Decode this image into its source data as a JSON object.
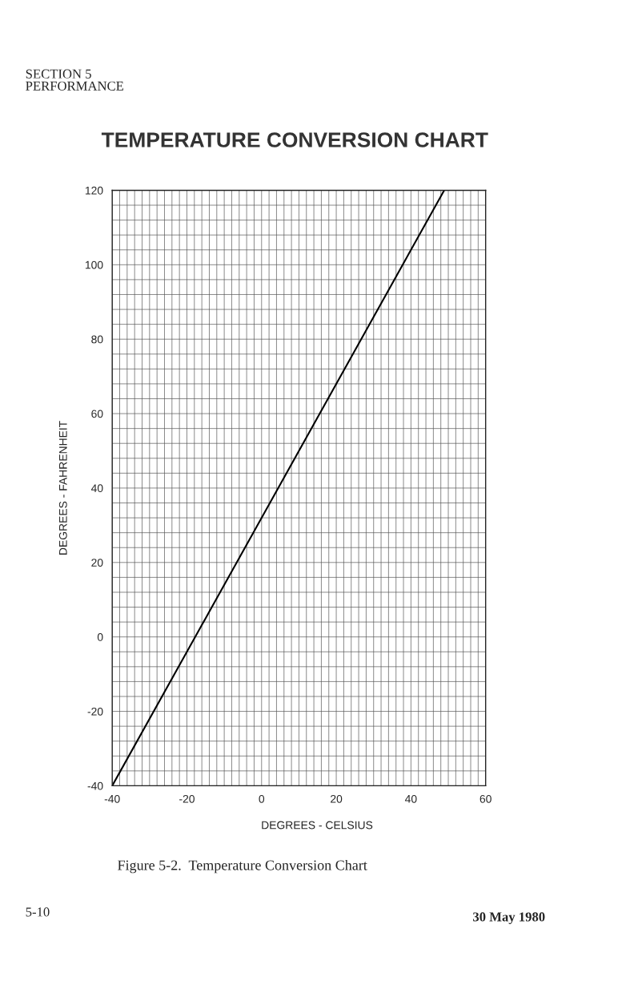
{
  "chart_data": {
    "type": "line",
    "title": "TEMPERATURE CONVERSION CHART",
    "xlabel": "DEGREES - CELSIUS",
    "ylabel": "DEGREES - FAHRENHEIT",
    "annotations": [
      "SECTION 5\nPERFORMANCE",
      "Figure 5-2.  Temperature Conversion Chart",
      "5-10",
      "30 May 1980"
    ],
    "x": [
      -40,
      48.9
    ],
    "series": [
      {
        "color": "#000000",
        "values": [
          -40,
          120
        ]
      }
    ],
    "xlim": [
      -40,
      60
    ],
    "ylim": [
      -40,
      120
    ],
    "xticks": [
      -40,
      {
        "value": -38,
        "label": null
      },
      {
        "value": -36,
        "label": null
      },
      {
        "value": -34,
        "label": null
      },
      {
        "value": -32,
        "label": null
      },
      {
        "value": -30,
        "label": null
      },
      {
        "value": -28,
        "label": null
      },
      {
        "value": -26,
        "label": null
      },
      {
        "value": -24,
        "label": null
      },
      {
        "value": -22,
        "label": null
      },
      -20,
      {
        "value": -18,
        "label": null
      },
      {
        "value": -16,
        "label": null
      },
      {
        "value": -14,
        "label": null
      },
      {
        "value": -12,
        "label": null
      },
      {
        "value": -10,
        "label": null
      },
      {
        "value": -8,
        "label": null
      },
      {
        "value": -6,
        "label": null
      },
      {
        "value": -4,
        "label": null
      },
      {
        "value": -2,
        "label": null
      },
      0,
      {
        "value": 2,
        "label": null
      },
      {
        "value": 4,
        "label": null
      },
      {
        "value": 6,
        "label": null
      },
      {
        "value": 8,
        "label": null
      },
      {
        "value": 10,
        "label": null
      },
      {
        "value": 12,
        "label": null
      },
      {
        "value": 14,
        "label": null
      },
      {
        "value": 16,
        "label": null
      },
      {
        "value": 18,
        "label": null
      },
      20,
      {
        "value": 22,
        "label": null
      },
      {
        "value": 24,
        "label": null
      },
      {
        "value": 26,
        "label": null
      },
      {
        "value": 28,
        "label": null
      },
      {
        "value": 30,
        "label": null
      },
      {
        "value": 32,
        "label": null
      },
      {
        "value": 34,
        "label": null
      },
      {
        "value": 36,
        "label": null
      },
      {
        "value": 38,
        "label": null
      },
      40,
      {
        "value": 42,
        "label": null
      },
      {
        "value": 44,
        "label": null
      },
      {
        "value": 46,
        "label": null
      },
      {
        "value": 48,
        "label": null
      },
      {
        "value": 50,
        "label": null
      },
      {
        "value": 52,
        "label": null
      },
      {
        "value": 54,
        "label": null
      },
      {
        "value": 56,
        "label": null
      },
      {
        "value": 58,
        "label": null
      },
      60
    ],
    "yticks": [
      -40,
      {
        "value": -36,
        "label": null
      },
      {
        "value": -32,
        "label": null
      },
      {
        "value": -28,
        "label": null
      },
      {
        "value": -24,
        "label": null
      },
      -20,
      {
        "value": -16,
        "label": null
      },
      {
        "value": -12,
        "label": null
      },
      {
        "value": -8,
        "label": null
      },
      {
        "value": -4,
        "label": null
      },
      0,
      {
        "value": 4,
        "label": null
      },
      {
        "value": 8,
        "label": null
      },
      {
        "value": 12,
        "label": null
      },
      {
        "value": 16,
        "label": null
      },
      20,
      {
        "value": 24,
        "label": null
      },
      {
        "value": 28,
        "label": null
      },
      {
        "value": 32,
        "label": null
      },
      {
        "value": 36,
        "label": null
      },
      40,
      {
        "value": 44,
        "label": null
      },
      {
        "value": 48,
        "label": null
      },
      {
        "value": 52,
        "label": null
      },
      {
        "value": 56,
        "label": null
      },
      60,
      {
        "value": 64,
        "label": null
      },
      {
        "value": 68,
        "label": null
      },
      {
        "value": 72,
        "label": null
      },
      {
        "value": 76,
        "label": null
      },
      80,
      {
        "value": 84,
        "label": null
      },
      {
        "value": 88,
        "label": null
      },
      {
        "value": 92,
        "label": null
      },
      {
        "value": 96,
        "label": null
      },
      100,
      {
        "value": 104,
        "label": null
      },
      {
        "value": 108,
        "label": null
      },
      {
        "value": 112,
        "label": null
      },
      {
        "value": 116,
        "label": null
      },
      120
    ],
    "grid": true,
    "marker": "none",
    "line_style": "solid"
  }
}
